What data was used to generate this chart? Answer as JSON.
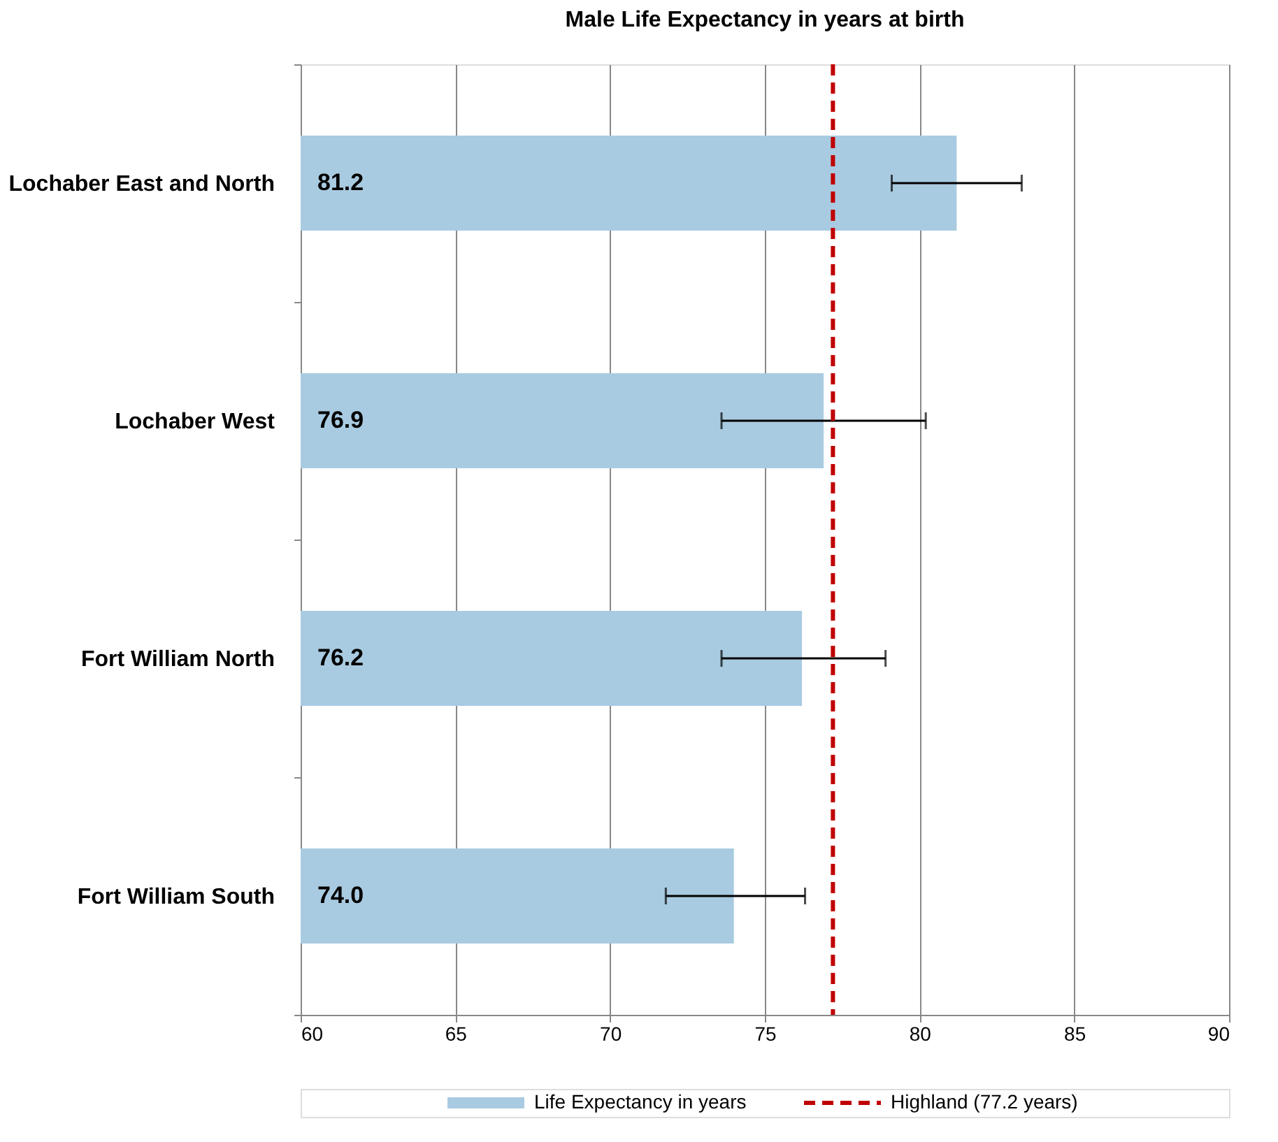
{
  "chart_data": {
    "type": "bar",
    "orientation": "horizontal",
    "title": "Male Life Expectancy in years at birth",
    "categories": [
      "Lochaber East and North",
      "Lochaber West",
      "Fort William North",
      "Fort William South"
    ],
    "series": [
      {
        "name": "Life Expectancy in years",
        "color": "#a9cbe1",
        "values": [
          81.2,
          76.9,
          76.2,
          74.0
        ],
        "value_labels": [
          "81.2",
          "76.9",
          "76.2",
          "74.0"
        ],
        "errors": [
          [
            79.1,
            83.3
          ],
          [
            73.6,
            80.2
          ],
          [
            73.6,
            78.9
          ],
          [
            71.8,
            76.3
          ]
        ]
      }
    ],
    "xlim": [
      60,
      90
    ],
    "xticks": [
      60,
      65,
      70,
      75,
      80,
      85,
      90
    ],
    "grid": "x",
    "legend": "bottom",
    "ref_lines": [
      {
        "axis": "x",
        "value": 77.2,
        "label": "Highland (77.2 years)",
        "color": "#c00000",
        "line_style": "dashed"
      }
    ]
  }
}
